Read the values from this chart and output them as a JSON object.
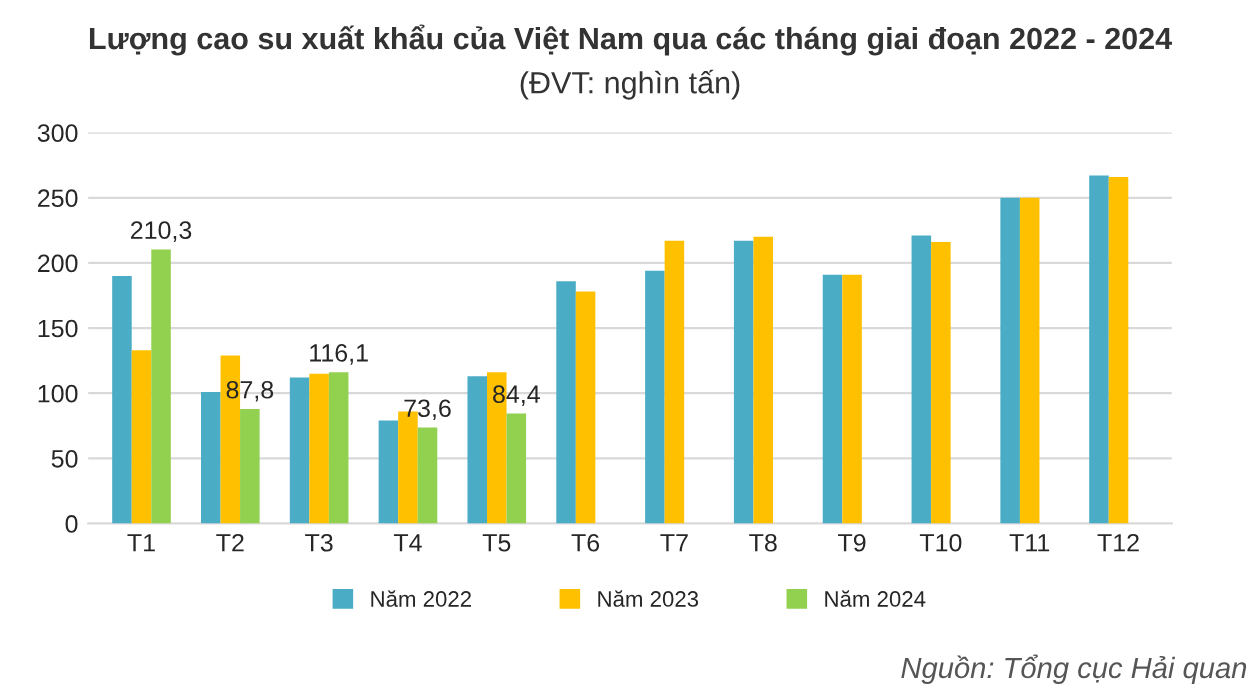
{
  "chart_data": {
    "type": "bar",
    "title": "Lượng cao su xuất khẩu của Việt Nam qua các tháng giai đoạn 2022 - 2024",
    "subtitle": "(ĐVT: nghìn tấn)",
    "categories": [
      "T1",
      "T2",
      "T3",
      "T4",
      "T5",
      "T6",
      "T7",
      "T8",
      "T9",
      "T10",
      "T11",
      "T12"
    ],
    "series": [
      {
        "name": "Năm 2022",
        "color": "#4bacc6",
        "values": [
          190,
          101,
          112,
          79,
          113,
          186,
          194,
          217,
          191,
          221,
          250,
          267
        ]
      },
      {
        "name": "Năm 2023",
        "color": "#ffc000",
        "values": [
          133,
          129,
          115,
          86,
          116,
          178,
          217,
          220,
          191,
          216,
          250,
          266
        ]
      },
      {
        "name": "Năm 2024",
        "color": "#92d050",
        "values": [
          210.3,
          87.8,
          116.1,
          73.6,
          84.4,
          null,
          null,
          null,
          null,
          null,
          null,
          null
        ],
        "value_labels": [
          "210,3",
          "87,8",
          "116,1",
          "73,6",
          "84,4",
          null,
          null,
          null,
          null,
          null,
          null,
          null
        ]
      }
    ],
    "ylim": [
      0,
      300
    ],
    "yticks": [
      0,
      50,
      100,
      150,
      200,
      250,
      300
    ],
    "grid": "y",
    "legend": "bottom",
    "annotations": [
      "Nguồn: Tổng cục Hải quan"
    ]
  }
}
